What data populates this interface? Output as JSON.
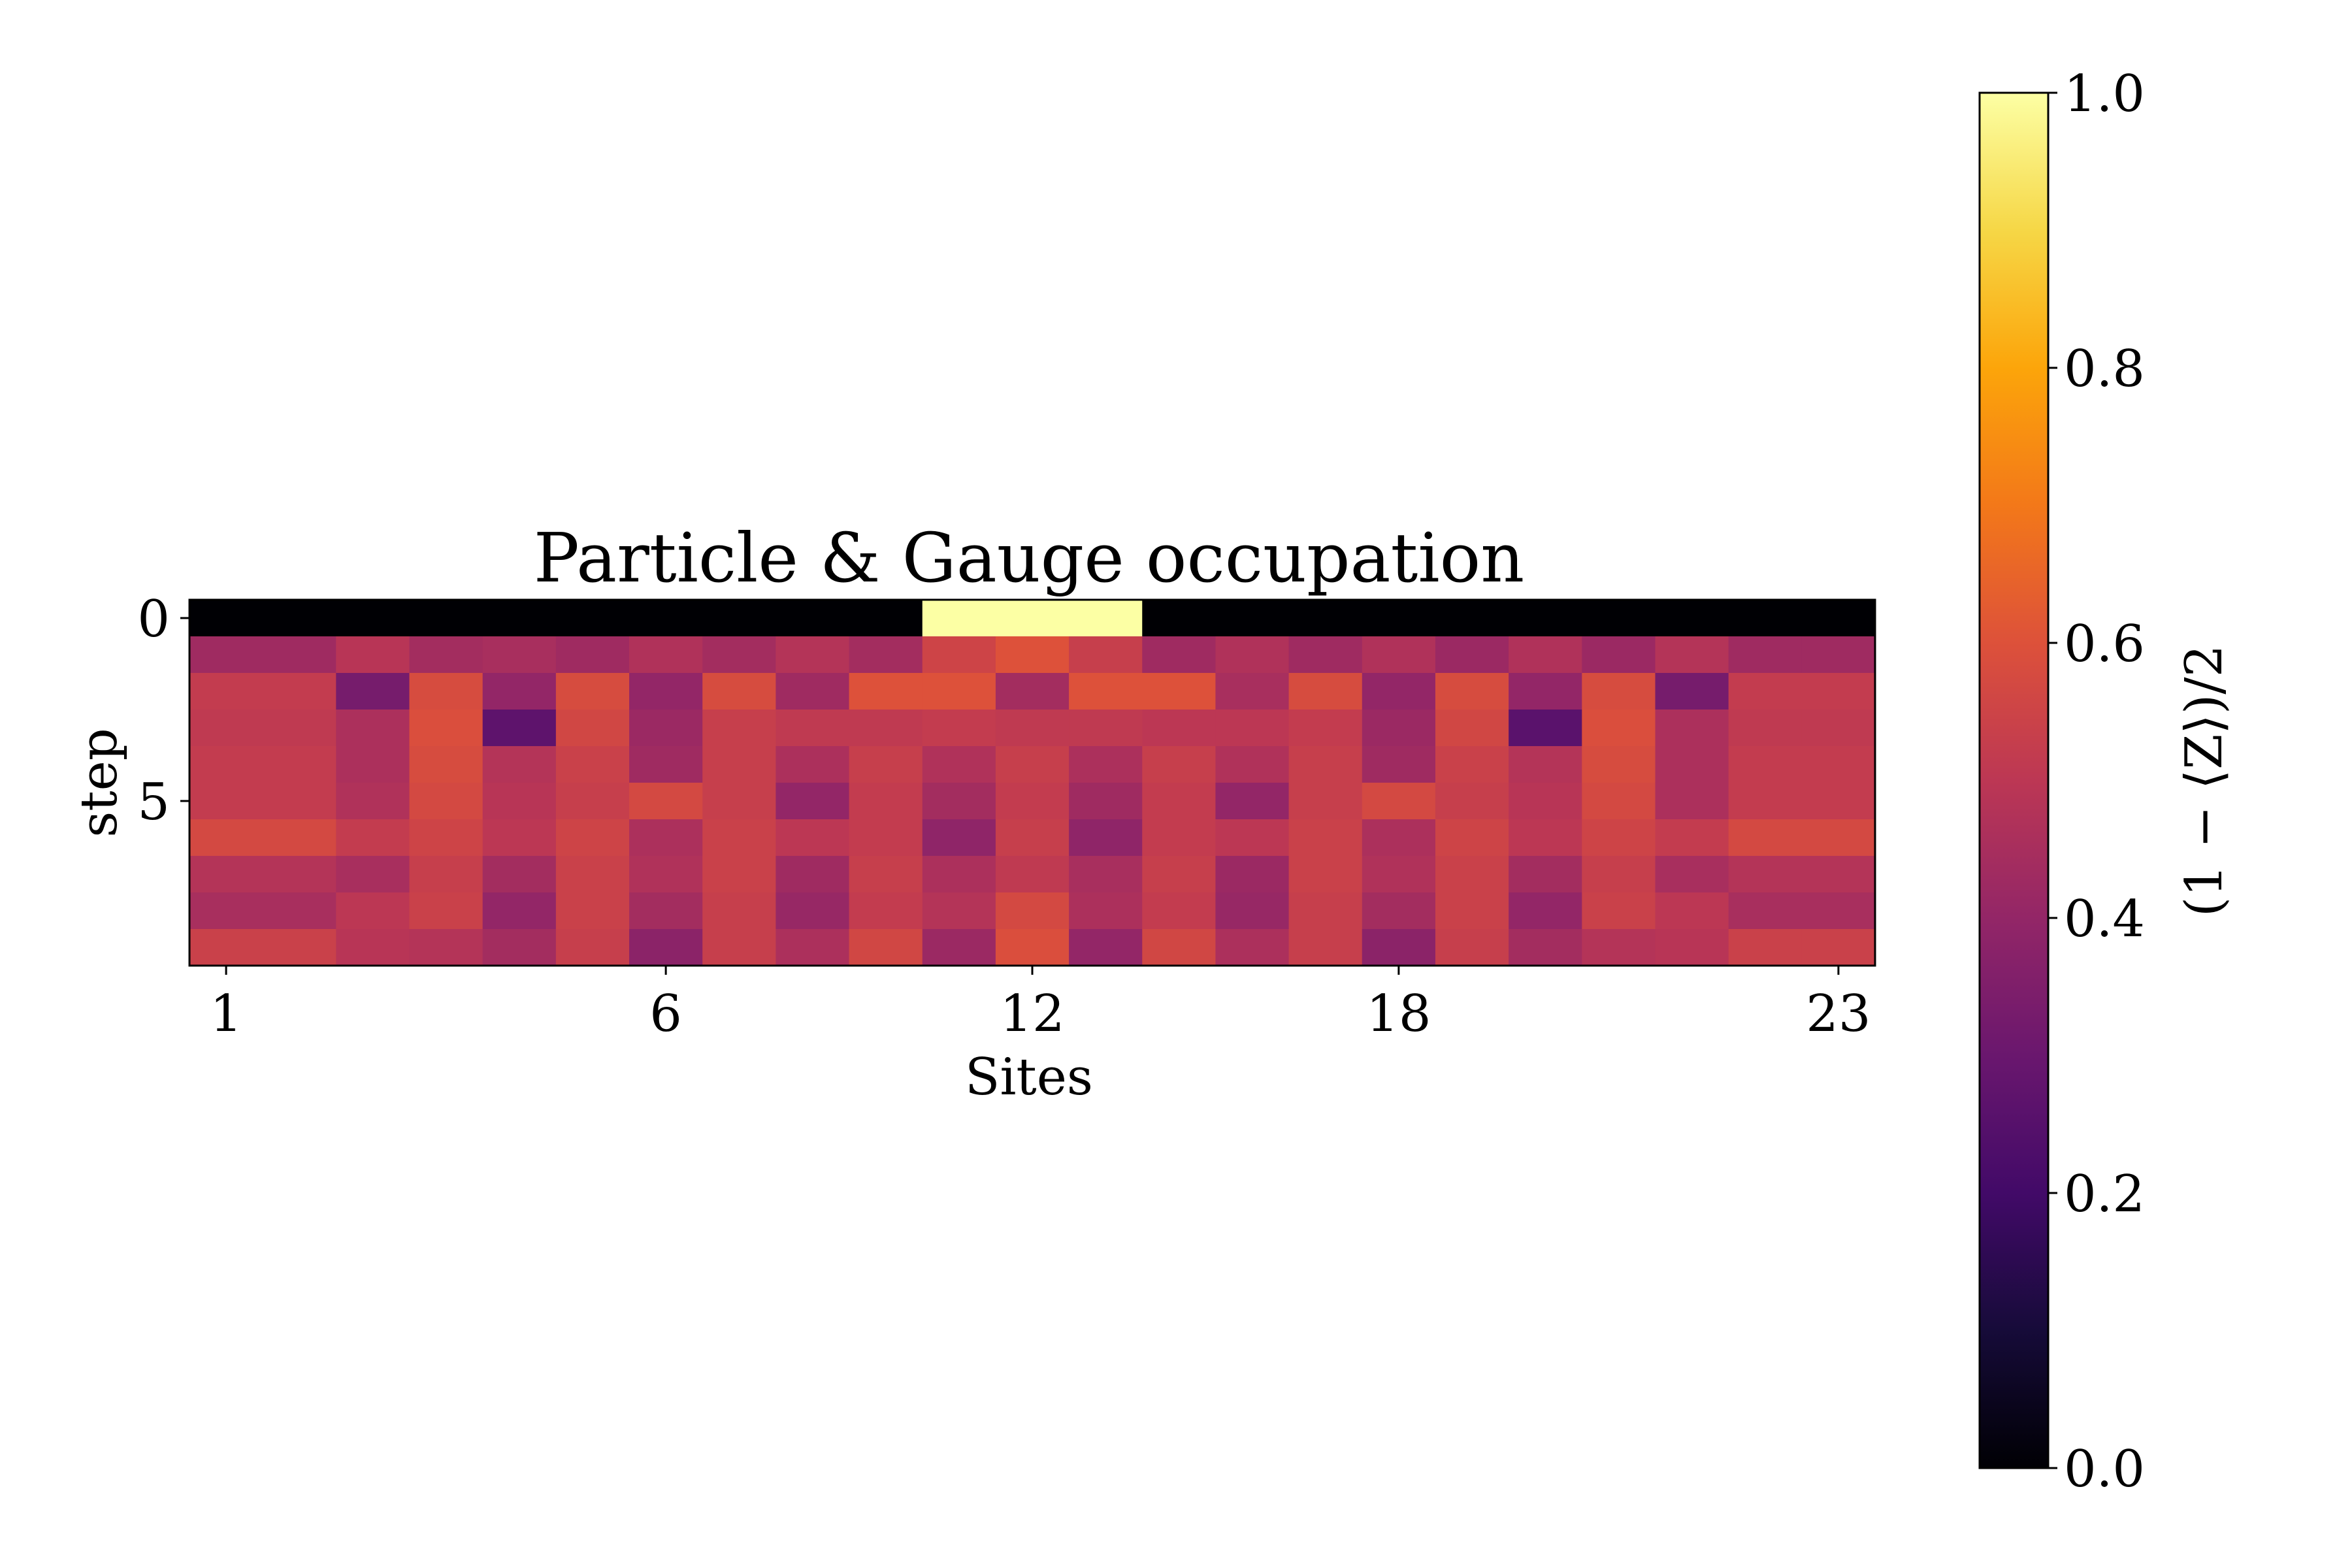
{
  "chart_data": {
    "type": "heatmap",
    "title": "Particle & Gauge occupation",
    "xlabel": "Sites",
    "ylabel": "step",
    "colorbar_label": "(1 − ⟨Z⟩)/2",
    "colormap": "inferno",
    "vmin": 0.0,
    "vmax": 1.0,
    "x_tick_labels": [
      "1",
      "6",
      "12",
      "18",
      "23"
    ],
    "x_tick_columns": [
      0,
      6,
      11,
      16,
      22
    ],
    "y_tick_labels": [
      "0",
      "5"
    ],
    "y_tick_rows": [
      0,
      5
    ],
    "colorbar_ticks": [
      "0.0",
      "0.2",
      "0.4",
      "0.6",
      "0.8",
      "1.0"
    ],
    "n_cols": 23,
    "n_rows": 10,
    "values": [
      [
        0.0,
        0.0,
        0.0,
        0.0,
        0.0,
        0.0,
        0.0,
        0.0,
        0.0,
        0.0,
        1.0,
        1.0,
        1.0,
        0.0,
        0.0,
        0.0,
        0.0,
        0.0,
        0.0,
        0.0,
        0.0,
        0.0,
        0.0
      ],
      [
        0.43,
        0.43,
        0.49,
        0.44,
        0.45,
        0.43,
        0.47,
        0.44,
        0.48,
        0.44,
        0.55,
        0.6,
        0.53,
        0.43,
        0.47,
        0.43,
        0.47,
        0.42,
        0.47,
        0.42,
        0.48,
        0.43,
        0.43
      ],
      [
        0.52,
        0.52,
        0.33,
        0.58,
        0.4,
        0.58,
        0.4,
        0.58,
        0.43,
        0.6,
        0.6,
        0.44,
        0.6,
        0.6,
        0.45,
        0.58,
        0.4,
        0.58,
        0.4,
        0.58,
        0.33,
        0.52,
        0.52
      ],
      [
        0.51,
        0.51,
        0.46,
        0.59,
        0.27,
        0.56,
        0.42,
        0.53,
        0.51,
        0.51,
        0.52,
        0.51,
        0.51,
        0.5,
        0.5,
        0.52,
        0.42,
        0.56,
        0.26,
        0.59,
        0.46,
        0.51,
        0.51
      ],
      [
        0.52,
        0.52,
        0.46,
        0.58,
        0.48,
        0.54,
        0.43,
        0.53,
        0.46,
        0.53,
        0.47,
        0.53,
        0.46,
        0.53,
        0.47,
        0.53,
        0.43,
        0.54,
        0.48,
        0.58,
        0.46,
        0.52,
        0.52
      ],
      [
        0.52,
        0.52,
        0.47,
        0.57,
        0.49,
        0.53,
        0.57,
        0.53,
        0.4,
        0.52,
        0.44,
        0.52,
        0.43,
        0.52,
        0.4,
        0.53,
        0.57,
        0.53,
        0.49,
        0.57,
        0.46,
        0.52,
        0.52
      ],
      [
        0.57,
        0.57,
        0.52,
        0.55,
        0.5,
        0.55,
        0.46,
        0.54,
        0.5,
        0.52,
        0.39,
        0.53,
        0.39,
        0.52,
        0.5,
        0.54,
        0.46,
        0.55,
        0.5,
        0.55,
        0.52,
        0.57,
        0.57
      ],
      [
        0.48,
        0.48,
        0.45,
        0.53,
        0.44,
        0.54,
        0.47,
        0.54,
        0.43,
        0.53,
        0.46,
        0.51,
        0.45,
        0.53,
        0.42,
        0.54,
        0.47,
        0.54,
        0.44,
        0.53,
        0.45,
        0.48,
        0.48
      ],
      [
        0.45,
        0.45,
        0.5,
        0.54,
        0.4,
        0.54,
        0.44,
        0.53,
        0.41,
        0.52,
        0.48,
        0.57,
        0.46,
        0.52,
        0.41,
        0.53,
        0.44,
        0.54,
        0.4,
        0.54,
        0.5,
        0.45,
        0.45
      ],
      [
        0.54,
        0.54,
        0.49,
        0.48,
        0.44,
        0.53,
        0.38,
        0.53,
        0.46,
        0.56,
        0.42,
        0.59,
        0.4,
        0.56,
        0.46,
        0.53,
        0.38,
        0.53,
        0.44,
        0.48,
        0.49,
        0.54,
        0.54
      ]
    ]
  }
}
